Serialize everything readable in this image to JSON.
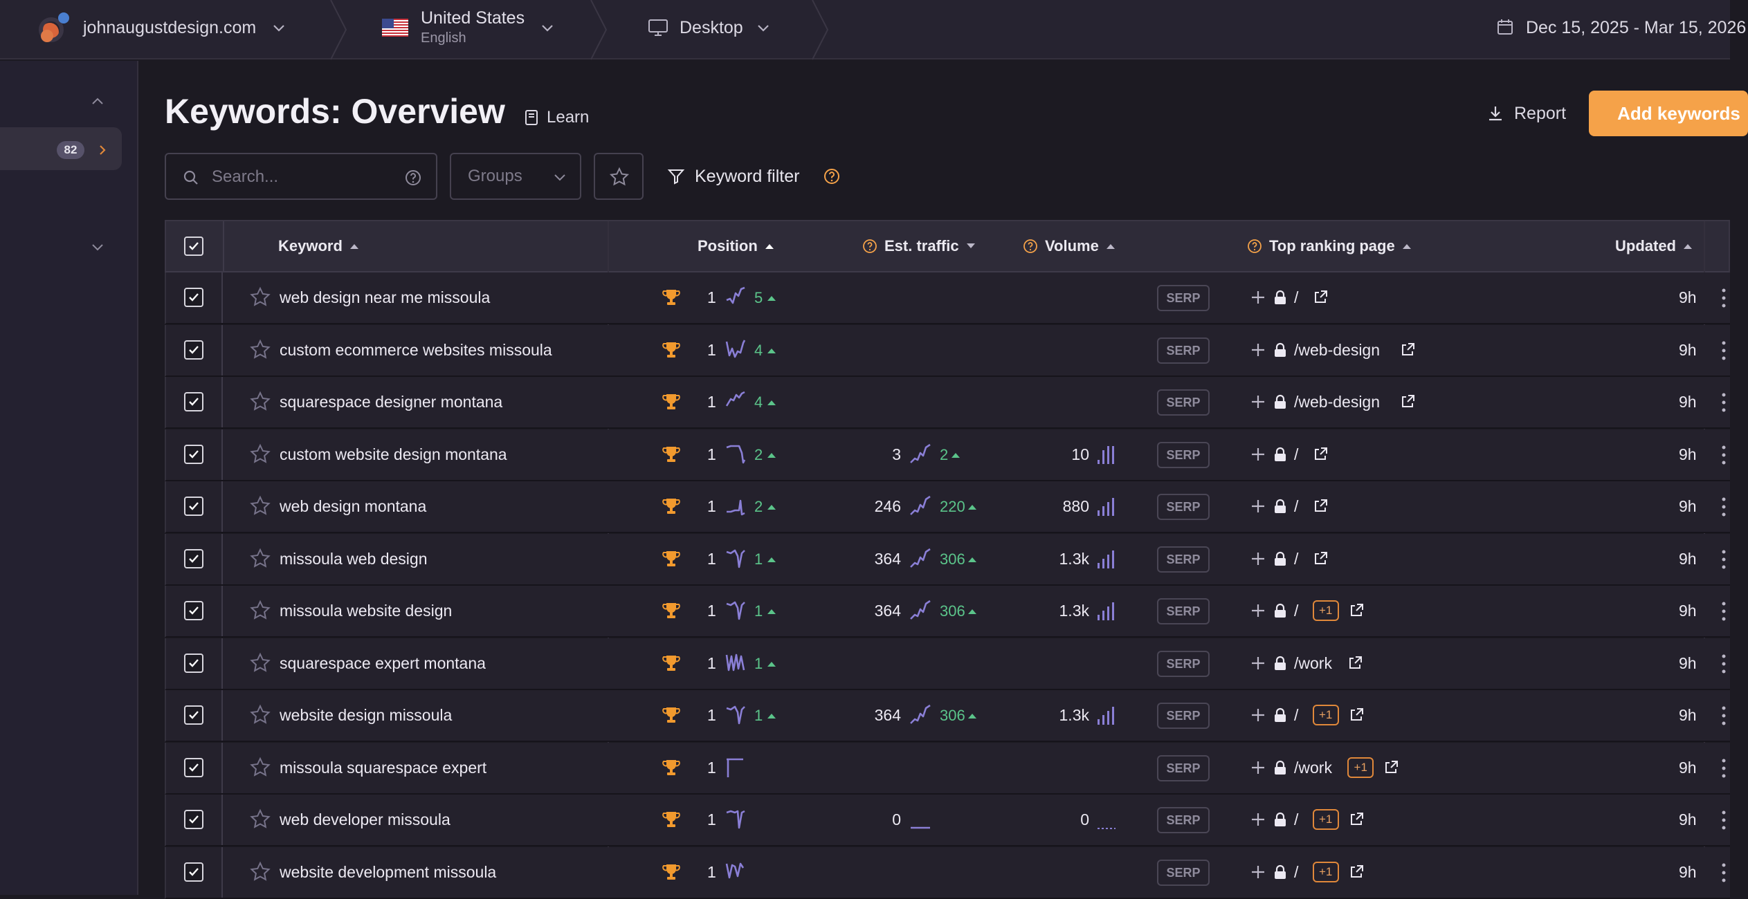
{
  "topbar": {
    "site": "johnaugustdesign.com",
    "country": "United States",
    "language": "English",
    "device": "Desktop",
    "date_range": "Dec 15, 2025 - Mar 15, 2026"
  },
  "sidebar": {
    "badge_count": "82"
  },
  "header": {
    "title": "Keywords: Overview",
    "learn_label": "Learn",
    "report_label": "Report",
    "add_keywords_label": "Add keywords"
  },
  "toolbar": {
    "search_placeholder": "Search...",
    "groups_label": "Groups",
    "keyword_filter_label": "Keyword filter"
  },
  "table": {
    "columns": {
      "keyword": "Keyword",
      "position": "Position",
      "est_traffic": "Est. traffic",
      "volume": "Volume",
      "top_ranking_page": "Top ranking page",
      "updated": "Updated"
    },
    "serp_label": "SERP",
    "rows": [
      {
        "keyword": "web design near me missoula",
        "position": "1",
        "pos_change": "5",
        "traffic": "",
        "traffic_change": "",
        "volume": "",
        "page": "/",
        "extra": "",
        "updated": "9h"
      },
      {
        "keyword": "custom ecommerce websites missoula",
        "position": "1",
        "pos_change": "4",
        "traffic": "",
        "traffic_change": "",
        "volume": "",
        "page": "/web-design",
        "extra": "",
        "updated": "9h"
      },
      {
        "keyword": "squarespace designer montana",
        "position": "1",
        "pos_change": "4",
        "traffic": "",
        "traffic_change": "",
        "volume": "",
        "page": "/web-design",
        "extra": "",
        "updated": "9h"
      },
      {
        "keyword": "custom website design montana",
        "position": "1",
        "pos_change": "2",
        "traffic": "3",
        "traffic_change": "2",
        "volume": "10",
        "page": "/",
        "extra": "",
        "updated": "9h"
      },
      {
        "keyword": "web design montana",
        "position": "1",
        "pos_change": "2",
        "traffic": "246",
        "traffic_change": "220",
        "volume": "880",
        "page": "/",
        "extra": "",
        "updated": "9h"
      },
      {
        "keyword": "missoula web design",
        "position": "1",
        "pos_change": "1",
        "traffic": "364",
        "traffic_change": "306",
        "volume": "1.3k",
        "page": "/",
        "extra": "",
        "updated": "9h"
      },
      {
        "keyword": "missoula website design",
        "position": "1",
        "pos_change": "1",
        "traffic": "364",
        "traffic_change": "306",
        "volume": "1.3k",
        "page": "/",
        "extra": "+1",
        "updated": "9h"
      },
      {
        "keyword": "squarespace expert montana",
        "position": "1",
        "pos_change": "1",
        "traffic": "",
        "traffic_change": "",
        "volume": "",
        "page": "/work",
        "extra": "",
        "updated": "9h"
      },
      {
        "keyword": "website design missoula",
        "position": "1",
        "pos_change": "1",
        "traffic": "364",
        "traffic_change": "306",
        "volume": "1.3k",
        "page": "/",
        "extra": "+1",
        "updated": "9h"
      },
      {
        "keyword": "missoula squarespace expert",
        "position": "1",
        "pos_change": "",
        "traffic": "",
        "traffic_change": "",
        "volume": "",
        "page": "/work",
        "extra": "+1",
        "updated": "9h"
      },
      {
        "keyword": "web developer missoula",
        "position": "1",
        "pos_change": "",
        "traffic": "0",
        "traffic_change": "",
        "volume": "0",
        "page": "/",
        "extra": "+1",
        "updated": "9h"
      },
      {
        "keyword": "website development missoula",
        "position": "1",
        "pos_change": "",
        "traffic": "",
        "traffic_change": "",
        "volume": "",
        "page": "/",
        "extra": "+1",
        "updated": "9h"
      }
    ]
  },
  "colors": {
    "accent": "#f5a249",
    "positive": "#5bc48a",
    "sparkline": "#8a7fd6",
    "trophy": "#f29a2e"
  },
  "icons": [
    "logo",
    "chevron-down-icon",
    "us-flag-icon",
    "desktop-icon",
    "calendar-icon",
    "chevron-up-icon",
    "chevron-right-icon",
    "book-icon",
    "download-icon",
    "search-icon",
    "help-icon",
    "star-icon",
    "filter-icon",
    "checkbox-icon",
    "sort-arrow-icon",
    "trophy-icon",
    "sparkline-icon",
    "volume-bars-icon",
    "plus-icon",
    "lock-icon",
    "external-link-icon",
    "kebab-icon"
  ]
}
